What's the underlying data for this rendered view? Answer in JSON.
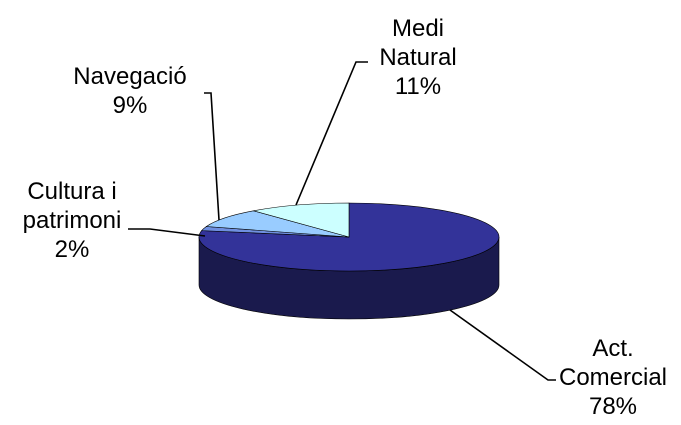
{
  "chart_data": {
    "type": "pie",
    "style": "3d",
    "title": "",
    "legend": "none",
    "slices": [
      {
        "label_lines": [
          "Act.",
          "Comercial"
        ],
        "value": 78,
        "value_text": "78%",
        "color": "#333399",
        "side_color": "#1a1a4d"
      },
      {
        "label_lines": [
          "Cultura i",
          "patrimoni"
        ],
        "value": 2,
        "value_text": "2%",
        "color": "#6f8fe0",
        "side_color": "#3a4f8c"
      },
      {
        "label_lines": [
          "Navegació"
        ],
        "value": 9,
        "value_text": "9%",
        "color": "#99ccff",
        "side_color": "#5f86ad"
      },
      {
        "label_lines": [
          "Medi",
          "Natural"
        ],
        "value": 11,
        "value_text": "11%",
        "color": "#ccffff",
        "side_color": "#8cb3b3"
      }
    ]
  }
}
